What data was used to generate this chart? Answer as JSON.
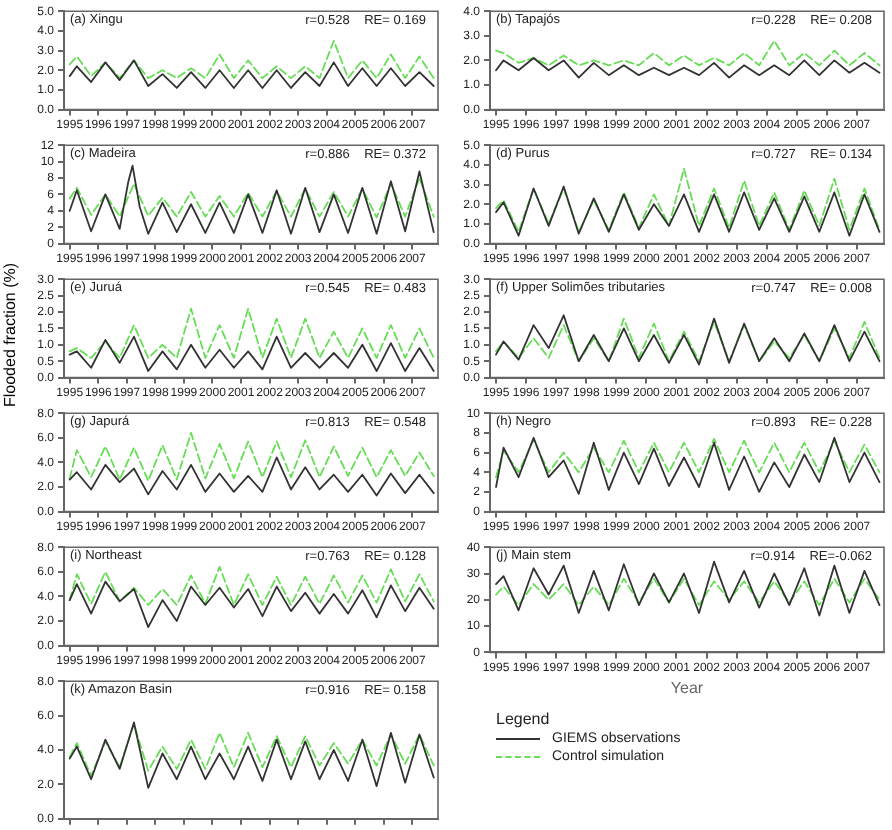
{
  "chart_data": [
    {
      "type": "line",
      "title": "(a) Xingu",
      "annotations": [
        "r=0.528    RE= 0.169"
      ],
      "x": [
        1995.0,
        1995.25,
        1995.75,
        1996.25,
        1996.75,
        1997.25,
        1997.75,
        1998.25,
        1998.75,
        1999.25,
        1999.75,
        2000.25,
        2000.75,
        2001.25,
        2001.75,
        2002.25,
        2002.75,
        2003.25,
        2003.75,
        2004.25,
        2004.75,
        2005.25,
        2005.75,
        2006.25,
        2006.75,
        2007.25,
        2007.75
      ],
      "xlim": [
        1994.8,
        2007.9
      ],
      "xticks": [
        1995,
        1996,
        1997,
        1998,
        1999,
        2000,
        2001,
        2002,
        2003,
        2004,
        2005,
        2006,
        2007
      ],
      "ylim": [
        0,
        5
      ],
      "yticks": [
        {
          "value": 0,
          "label": "0.0"
        },
        {
          "value": 1,
          "label": "1.0"
        },
        {
          "value": 2,
          "label": "2.0"
        },
        {
          "value": 3,
          "label": "3.0"
        },
        {
          "value": 4,
          "label": "4.0"
        },
        {
          "value": 5,
          "label": "5.0"
        }
      ],
      "grid": false,
      "series": [
        {
          "color": "#333333",
          "line_style": "solid",
          "values": [
            1.7,
            2.2,
            1.4,
            2.4,
            1.5,
            2.5,
            1.2,
            1.8,
            1.1,
            1.9,
            1.1,
            2.0,
            1.1,
            2.0,
            1.1,
            2.0,
            1.1,
            1.9,
            1.2,
            2.4,
            1.2,
            2.1,
            1.2,
            2.1,
            1.2,
            1.9,
            1.2
          ]
        },
        {
          "color": "#66dd55",
          "line_style": "dashed",
          "values": [
            2.3,
            2.7,
            1.7,
            2.4,
            1.6,
            2.5,
            1.6,
            2.0,
            1.6,
            2.1,
            1.6,
            2.8,
            1.6,
            2.5,
            1.6,
            2.2,
            1.6,
            2.2,
            1.6,
            3.5,
            1.6,
            2.5,
            1.6,
            2.8,
            1.6,
            2.7,
            1.6
          ]
        }
      ]
    },
    {
      "type": "line",
      "title": "(b) Tapajós",
      "annotations": [
        "r=0.228    RE= 0.208"
      ],
      "x": [
        1995.0,
        1995.25,
        1995.75,
        1996.25,
        1996.75,
        1997.25,
        1997.75,
        1998.25,
        1998.75,
        1999.25,
        1999.75,
        2000.25,
        2000.75,
        2001.25,
        2001.75,
        2002.25,
        2002.75,
        2003.25,
        2003.75,
        2004.25,
        2004.75,
        2005.25,
        2005.75,
        2006.25,
        2006.75,
        2007.25,
        2007.75
      ],
      "xlim": [
        1994.8,
        2007.9
      ],
      "xticks": [
        1995,
        1996,
        1997,
        1998,
        1999,
        2000,
        2001,
        2002,
        2003,
        2004,
        2005,
        2006,
        2007
      ],
      "ylim": [
        0,
        4
      ],
      "yticks": [
        {
          "value": 0,
          "label": "0.0"
        },
        {
          "value": 1,
          "label": "1.0"
        },
        {
          "value": 2,
          "label": "2.0"
        },
        {
          "value": 3,
          "label": "3.0"
        },
        {
          "value": 4,
          "label": "4.0"
        }
      ],
      "grid": false,
      "series": [
        {
          "color": "#333333",
          "line_style": "solid",
          "values": [
            1.6,
            2.0,
            1.6,
            2.1,
            1.6,
            2.0,
            1.3,
            1.9,
            1.4,
            1.8,
            1.4,
            1.7,
            1.4,
            1.7,
            1.4,
            1.9,
            1.3,
            1.8,
            1.4,
            1.8,
            1.4,
            2.0,
            1.4,
            2.0,
            1.5,
            1.9,
            1.5
          ]
        },
        {
          "color": "#66dd55",
          "line_style": "dashed",
          "values": [
            2.4,
            2.3,
            1.9,
            2.1,
            1.8,
            2.2,
            1.8,
            2.0,
            1.8,
            2.0,
            1.8,
            2.3,
            1.8,
            2.2,
            1.8,
            2.1,
            1.8,
            2.3,
            1.8,
            2.8,
            1.8,
            2.3,
            1.8,
            2.4,
            1.8,
            2.3,
            1.8
          ]
        }
      ]
    },
    {
      "type": "line",
      "title": "(c) Madeira",
      "annotations": [
        "r=0.886    RE= 0.372"
      ],
      "x": [
        1995.0,
        1995.25,
        1995.75,
        1996.25,
        1996.75,
        1997.25,
        1997.75,
        1998.25,
        1998.75,
        1999.25,
        1999.75,
        2000.25,
        2000.75,
        2001.25,
        2001.75,
        2002.25,
        2002.75,
        2003.25,
        2003.75,
        2004.25,
        2004.75,
        2005.25,
        2005.75,
        2006.25,
        2006.75,
        2007.25,
        2007.75
      ],
      "xlim": [
        1994.8,
        2007.9
      ],
      "xticks": [
        1995,
        1996,
        1997,
        1998,
        1999,
        2000,
        2001,
        2002,
        2003,
        2004,
        2005,
        2006,
        2007
      ],
      "ylim": [
        0,
        12
      ],
      "yticks": [
        0,
        2,
        4,
        6,
        8,
        10,
        12
      ],
      "grid": false,
      "series": [
        {
          "color": "#333333",
          "line_style": "solid",
          "x": [
            1995.0,
            1995.25,
            1995.75,
            1996.25,
            1996.75,
            1997.05,
            1997.2,
            1997.45,
            1997.75,
            1998.25,
            1998.75,
            1999.25,
            1999.75,
            2000.25,
            2000.75,
            2001.25,
            2001.75,
            2002.25,
            2002.75,
            2003.25,
            2003.75,
            2004.25,
            2004.75,
            2005.25,
            2005.75,
            2006.25,
            2006.75,
            2007.25,
            2007.75
          ],
          "values": [
            4,
            6.5,
            1.5,
            6.0,
            1.8,
            7.5,
            9.5,
            4.5,
            1.2,
            5.0,
            1.4,
            4.8,
            1.3,
            5.0,
            1.3,
            6.0,
            1.3,
            6.5,
            1.2,
            6.8,
            1.4,
            6.0,
            1.3,
            6.8,
            1.2,
            7.6,
            1.5,
            8.8,
            1.4
          ]
        },
        {
          "color": "#66dd55",
          "line_style": "dashed",
          "values": [
            5.5,
            6.8,
            3.5,
            6.0,
            3.3,
            7.3,
            3.4,
            5.6,
            3.3,
            6.3,
            3.3,
            5.8,
            3.3,
            6.2,
            3.3,
            6.4,
            3.3,
            6.7,
            3.3,
            6.3,
            3.3,
            6.7,
            3.2,
            7.3,
            3.3,
            8.0,
            3.3
          ]
        }
      ]
    },
    {
      "type": "line",
      "title": "(d) Purus",
      "annotations": [
        "r=0.727    RE= 0.134"
      ],
      "x": [
        1995.0,
        1995.25,
        1995.75,
        1996.25,
        1996.75,
        1997.25,
        1997.75,
        1998.25,
        1998.75,
        1999.25,
        1999.75,
        2000.25,
        2000.75,
        2001.25,
        2001.75,
        2002.25,
        2002.75,
        2003.25,
        2003.75,
        2004.25,
        2004.75,
        2005.25,
        2005.75,
        2006.25,
        2006.75,
        2007.25,
        2007.75
      ],
      "xlim": [
        1994.8,
        2007.9
      ],
      "xticks": [
        1995,
        1996,
        1997,
        1998,
        1999,
        2000,
        2001,
        2002,
        2003,
        2004,
        2005,
        2006,
        2007
      ],
      "ylim": [
        0,
        5
      ],
      "yticks": [
        {
          "value": 0,
          "label": "0.0"
        },
        {
          "value": 1,
          "label": "1.0"
        },
        {
          "value": 2,
          "label": "2.0"
        },
        {
          "value": 3,
          "label": "3.0"
        },
        {
          "value": 4,
          "label": "4.0"
        },
        {
          "value": 5,
          "label": "5.0"
        }
      ],
      "grid": false,
      "series": [
        {
          "color": "#333333",
          "line_style": "solid",
          "values": [
            1.6,
            2.1,
            0.4,
            2.8,
            0.9,
            2.9,
            0.5,
            2.3,
            0.6,
            2.5,
            0.7,
            2.0,
            0.9,
            2.5,
            0.6,
            2.5,
            0.6,
            2.6,
            0.7,
            2.3,
            0.6,
            2.4,
            0.6,
            2.6,
            0.4,
            2.5,
            0.6
          ]
        },
        {
          "color": "#66dd55",
          "line_style": "dashed",
          "values": [
            1.8,
            2.2,
            0.6,
            2.8,
            1.0,
            2.8,
            0.6,
            2.2,
            0.7,
            2.6,
            0.8,
            2.5,
            0.9,
            3.8,
            0.9,
            2.8,
            0.8,
            3.2,
            0.9,
            2.6,
            0.7,
            2.7,
            0.9,
            3.3,
            0.7,
            2.8,
            0.7
          ]
        }
      ]
    },
    {
      "type": "line",
      "title": "(e) Juruá",
      "ylabel": "Flooded fraction (%)",
      "annotations": [
        "r=0.545    RE= 0.483"
      ],
      "x": [
        1995.0,
        1995.25,
        1995.75,
        1996.25,
        1996.75,
        1997.25,
        1997.75,
        1998.25,
        1998.75,
        1999.25,
        1999.75,
        2000.25,
        2000.75,
        2001.25,
        2001.75,
        2002.25,
        2002.75,
        2003.25,
        2003.75,
        2004.25,
        2004.75,
        2005.25,
        2005.75,
        2006.25,
        2006.75,
        2007.25,
        2007.75
      ],
      "xlim": [
        1994.8,
        2007.9
      ],
      "xticks": [
        1995,
        1996,
        1997,
        1998,
        1999,
        2000,
        2001,
        2002,
        2003,
        2004,
        2005,
        2006,
        2007
      ],
      "ylim": [
        0,
        3
      ],
      "yticks": [
        {
          "value": 0,
          "label": "0.0"
        },
        {
          "value": 0.5,
          "label": "0.5"
        },
        {
          "value": 1,
          "label": "1.0"
        },
        {
          "value": 1.5,
          "label": "1.5"
        },
        {
          "value": 2,
          "label": "2.0"
        },
        {
          "value": 2.5,
          "label": "2.5"
        },
        {
          "value": 3,
          "label": "3.0"
        }
      ],
      "grid": false,
      "series": [
        {
          "color": "#333333",
          "line_style": "solid",
          "values": [
            0.7,
            0.8,
            0.3,
            1.15,
            0.45,
            1.25,
            0.2,
            0.8,
            0.25,
            1.0,
            0.3,
            0.85,
            0.3,
            0.8,
            0.25,
            1.25,
            0.3,
            0.75,
            0.3,
            0.75,
            0.3,
            1.0,
            0.2,
            1.05,
            0.2,
            0.9,
            0.2
          ]
        },
        {
          "color": "#66dd55",
          "line_style": "dashed",
          "values": [
            0.8,
            0.9,
            0.6,
            1.1,
            0.6,
            1.6,
            0.6,
            1.0,
            0.6,
            2.1,
            0.6,
            1.6,
            0.6,
            2.1,
            0.6,
            1.8,
            0.6,
            1.8,
            0.6,
            1.4,
            0.6,
            1.5,
            0.6,
            1.6,
            0.6,
            1.5,
            0.6
          ]
        }
      ]
    },
    {
      "type": "line",
      "title": "(f) Upper Solimões tributaries",
      "annotations": [
        "r=0.747    RE= 0.008"
      ],
      "x": [
        1995.0,
        1995.25,
        1995.75,
        1996.25,
        1996.75,
        1997.25,
        1997.75,
        1998.25,
        1998.75,
        1999.25,
        1999.75,
        2000.25,
        2000.75,
        2001.25,
        2001.75,
        2002.25,
        2002.75,
        2003.25,
        2003.75,
        2004.25,
        2004.75,
        2005.25,
        2005.75,
        2006.25,
        2006.75,
        2007.25,
        2007.75
      ],
      "xlim": [
        1994.8,
        2007.9
      ],
      "xticks": [
        1995,
        1996,
        1997,
        1998,
        1999,
        2000,
        2001,
        2002,
        2003,
        2004,
        2005,
        2006,
        2007
      ],
      "ylim": [
        0,
        3
      ],
      "yticks": [
        {
          "value": 0,
          "label": "0.0"
        },
        {
          "value": 0.5,
          "label": "0.5"
        },
        {
          "value": 1,
          "label": "1.0"
        },
        {
          "value": 1.5,
          "label": "1.5"
        },
        {
          "value": 2,
          "label": "2.0"
        },
        {
          "value": 2.5,
          "label": "2.5"
        },
        {
          "value": 3,
          "label": "3.0"
        }
      ],
      "grid": false,
      "series": [
        {
          "color": "#333333",
          "line_style": "solid",
          "values": [
            0.7,
            1.1,
            0.55,
            1.6,
            0.9,
            1.9,
            0.5,
            1.3,
            0.5,
            1.5,
            0.5,
            1.3,
            0.45,
            1.3,
            0.4,
            1.8,
            0.45,
            1.65,
            0.5,
            1.2,
            0.5,
            1.35,
            0.5,
            1.6,
            0.5,
            1.4,
            0.5
          ]
        },
        {
          "color": "#66dd55",
          "line_style": "dashed",
          "values": [
            0.8,
            1.1,
            0.6,
            1.2,
            0.6,
            1.6,
            0.5,
            1.2,
            0.5,
            1.8,
            0.6,
            1.65,
            0.5,
            1.4,
            0.5,
            1.7,
            0.5,
            1.6,
            0.5,
            1.1,
            0.6,
            1.3,
            0.5,
            1.5,
            0.6,
            1.7,
            0.6
          ]
        }
      ]
    },
    {
      "type": "line",
      "title": "(g) Japurá",
      "annotations": [
        "r=0.813    RE= 0.548"
      ],
      "x": [
        1995.0,
        1995.25,
        1995.75,
        1996.25,
        1996.75,
        1997.25,
        1997.75,
        1998.25,
        1998.75,
        1999.25,
        1999.75,
        2000.25,
        2000.75,
        2001.25,
        2001.75,
        2002.25,
        2002.75,
        2003.25,
        2003.75,
        2004.25,
        2004.75,
        2005.25,
        2005.75,
        2006.25,
        2006.75,
        2007.25,
        2007.75
      ],
      "xlim": [
        1994.8,
        2007.9
      ],
      "xticks": [
        1995,
        1996,
        1997,
        1998,
        1999,
        2000,
        2001,
        2002,
        2003,
        2004,
        2005,
        2006,
        2007
      ],
      "ylim": [
        0,
        8
      ],
      "yticks": [
        {
          "value": 0,
          "label": "0.0"
        },
        {
          "value": 2,
          "label": "2.0"
        },
        {
          "value": 4,
          "label": "4.0"
        },
        {
          "value": 6,
          "label": "6.0"
        },
        {
          "value": 8,
          "label": "8.0"
        }
      ],
      "grid": false,
      "series": [
        {
          "color": "#333333",
          "line_style": "solid",
          "values": [
            2.6,
            3.2,
            1.8,
            3.8,
            2.4,
            3.5,
            1.4,
            3.3,
            1.8,
            3.8,
            1.6,
            3.1,
            1.6,
            2.9,
            1.6,
            4.4,
            1.8,
            3.6,
            1.8,
            3.0,
            1.6,
            3.0,
            1.3,
            3.1,
            1.5,
            3.0,
            1.5
          ]
        },
        {
          "color": "#66dd55",
          "line_style": "dashed",
          "values": [
            2.7,
            5.0,
            2.8,
            5.3,
            2.6,
            5.2,
            2.5,
            5.4,
            2.6,
            6.4,
            2.7,
            5.5,
            2.7,
            5.7,
            2.8,
            5.7,
            2.8,
            5.8,
            2.8,
            5.3,
            2.9,
            5.2,
            2.8,
            5.0,
            2.9,
            4.8,
            2.9
          ]
        }
      ]
    },
    {
      "type": "line",
      "title": "(h) Negro",
      "annotations": [
        "r=0.893    RE= 0.228"
      ],
      "x": [
        1995.0,
        1995.25,
        1995.75,
        1996.25,
        1996.75,
        1997.25,
        1997.75,
        1998.25,
        1998.75,
        1999.25,
        1999.75,
        2000.25,
        2000.75,
        2001.25,
        2001.75,
        2002.25,
        2002.75,
        2003.25,
        2003.75,
        2004.25,
        2004.75,
        2005.25,
        2005.75,
        2006.25,
        2006.75,
        2007.25,
        2007.75
      ],
      "xlim": [
        1994.8,
        2007.9
      ],
      "xticks": [
        1995,
        1996,
        1997,
        1998,
        1999,
        2000,
        2001,
        2002,
        2003,
        2004,
        2005,
        2006,
        2007
      ],
      "ylim": [
        0,
        10
      ],
      "yticks": [
        0,
        2,
        4,
        6,
        8,
        10
      ],
      "grid": false,
      "series": [
        {
          "color": "#333333",
          "line_style": "solid",
          "values": [
            2.5,
            6.5,
            3.5,
            7.5,
            3.5,
            5.2,
            1.8,
            7.0,
            2.2,
            6.0,
            2.8,
            6.4,
            2.6,
            5.5,
            2.5,
            7.0,
            2.2,
            5.6,
            2.0,
            5.0,
            2.5,
            5.8,
            3.0,
            7.5,
            3.0,
            6.0,
            3.0
          ]
        },
        {
          "color": "#66dd55",
          "line_style": "dashed",
          "values": [
            3.5,
            6.2,
            4.0,
            7.3,
            4.0,
            6.0,
            4.0,
            6.5,
            4.0,
            7.2,
            4.0,
            7.0,
            4.0,
            7.0,
            4.0,
            7.4,
            4.0,
            7.2,
            4.0,
            7.0,
            4.0,
            7.0,
            4.0,
            7.2,
            4.0,
            6.8,
            4.0
          ]
        }
      ]
    },
    {
      "type": "line",
      "title": "(i) Northeast",
      "annotations": [
        "r=0.763    RE= 0.128"
      ],
      "x": [
        1995.0,
        1995.25,
        1995.75,
        1996.25,
        1996.75,
        1997.25,
        1997.75,
        1998.25,
        1998.75,
        1999.25,
        1999.75,
        2000.25,
        2000.75,
        2001.25,
        2001.75,
        2002.25,
        2002.75,
        2003.25,
        2003.75,
        2004.25,
        2004.75,
        2005.25,
        2005.75,
        2006.25,
        2006.75,
        2007.25,
        2007.75
      ],
      "xlim": [
        1994.8,
        2007.9
      ],
      "xticks": [
        1995,
        1996,
        1997,
        1998,
        1999,
        2000,
        2001,
        2002,
        2003,
        2004,
        2005,
        2006,
        2007
      ],
      "ylim": [
        0,
        8
      ],
      "yticks": [
        {
          "value": 0,
          "label": "0.0"
        },
        {
          "value": 2,
          "label": "2.0"
        },
        {
          "value": 4,
          "label": "4.0"
        },
        {
          "value": 6,
          "label": "6.0"
        },
        {
          "value": 8,
          "label": "8.0"
        }
      ],
      "grid": false,
      "series": [
        {
          "color": "#333333",
          "line_style": "solid",
          "values": [
            3.7,
            5.0,
            2.6,
            5.2,
            3.6,
            4.6,
            1.5,
            3.7,
            2.0,
            4.8,
            3.3,
            4.7,
            3.1,
            4.6,
            2.4,
            4.8,
            2.8,
            4.3,
            2.6,
            4.2,
            2.6,
            4.5,
            2.3,
            4.9,
            2.8,
            4.7,
            3.0
          ]
        },
        {
          "color": "#66dd55",
          "line_style": "dashed",
          "values": [
            3.7,
            5.8,
            3.4,
            6.0,
            3.6,
            4.7,
            3.3,
            4.6,
            3.3,
            5.7,
            3.4,
            6.4,
            3.3,
            5.8,
            3.3,
            5.6,
            3.3,
            5.6,
            3.4,
            5.7,
            3.5,
            5.7,
            3.5,
            6.2,
            3.6,
            5.8,
            3.6
          ]
        }
      ]
    },
    {
      "type": "line",
      "title": "(j) Main stem",
      "xlabel": "Year",
      "annotations": [
        "r=0.914    RE=-0.062"
      ],
      "x": [
        1995.0,
        1995.25,
        1995.75,
        1996.25,
        1996.75,
        1997.25,
        1997.75,
        1998.25,
        1998.75,
        1999.25,
        1999.75,
        2000.25,
        2000.75,
        2001.25,
        2001.75,
        2002.25,
        2002.75,
        2003.25,
        2003.75,
        2004.25,
        2004.75,
        2005.25,
        2005.75,
        2006.25,
        2006.75,
        2007.25,
        2007.75
      ],
      "xlim": [
        1994.8,
        2007.9
      ],
      "xticks": [
        1995,
        1996,
        1997,
        1998,
        1999,
        2000,
        2001,
        2002,
        2003,
        2004,
        2005,
        2006,
        2007
      ],
      "ylim": [
        0,
        40
      ],
      "yticks": [
        0,
        10,
        20,
        30,
        40
      ],
      "grid": false,
      "series": [
        {
          "color": "#333333",
          "line_style": "solid",
          "values": [
            26,
            29,
            16,
            32,
            22,
            33,
            15,
            31,
            16,
            33.5,
            18,
            30,
            19,
            30,
            15,
            34.5,
            19,
            31,
            17,
            30,
            18,
            32,
            14,
            33,
            15,
            31,
            18
          ]
        },
        {
          "color": "#66dd55",
          "line_style": "dashed",
          "values": [
            22,
            25,
            18,
            26,
            20,
            26,
            18,
            25,
            18,
            28,
            19,
            28,
            19,
            28,
            18,
            27,
            20,
            27,
            19,
            27,
            19,
            27,
            18,
            28,
            19,
            28,
            20
          ]
        }
      ]
    },
    {
      "type": "line",
      "title": "(k) Amazon Basin",
      "annotations": [
        "r=0.916    RE= 0.158"
      ],
      "legend": "right",
      "legend_title": "Legend",
      "tick_labels": "y",
      "x": [
        1995.0,
        1995.25,
        1995.75,
        1996.25,
        1996.75,
        1997.25,
        1997.75,
        1998.25,
        1998.75,
        1999.25,
        1999.75,
        2000.25,
        2000.75,
        2001.25,
        2001.75,
        2002.25,
        2002.75,
        2003.25,
        2003.75,
        2004.25,
        2004.75,
        2005.25,
        2005.75,
        2006.25,
        2006.75,
        2007.25,
        2007.75
      ],
      "xlim": [
        1994.8,
        2007.9
      ],
      "xticks": [
        1995,
        1996,
        1997,
        1998,
        1999,
        2000,
        2001,
        2002,
        2003,
        2004,
        2005,
        2006,
        2007
      ],
      "ylim": [
        0,
        8
      ],
      "yticks": [
        {
          "value": 0,
          "label": "0.0"
        },
        {
          "value": 2,
          "label": "2.0"
        },
        {
          "value": 4,
          "label": "4.0"
        },
        {
          "value": 6,
          "label": "6.0"
        },
        {
          "value": 8,
          "label": "8.0"
        }
      ],
      "grid": false,
      "series": [
        {
          "name": "GIEMS observations",
          "color": "#333333",
          "line_style": "solid",
          "values": [
            3.5,
            4.2,
            2.3,
            4.6,
            2.9,
            5.6,
            1.8,
            3.8,
            2.3,
            4.2,
            2.3,
            3.8,
            2.3,
            4.2,
            2.2,
            4.6,
            2.3,
            4.5,
            2.3,
            4.0,
            2.2,
            4.6,
            1.9,
            5.0,
            2.1,
            4.9,
            2.4
          ]
        },
        {
          "name": "Control simulation",
          "color": "#66dd55",
          "line_style": "dashed",
          "values": [
            3.6,
            4.4,
            2.5,
            4.5,
            3.0,
            5.5,
            2.8,
            4.2,
            2.9,
            4.6,
            2.9,
            5.0,
            3.0,
            5.0,
            3.0,
            4.8,
            3.0,
            4.8,
            3.1,
            4.4,
            3.2,
            4.6,
            3.1,
            4.9,
            3.2,
            4.9,
            3.1
          ]
        }
      ]
    }
  ]
}
